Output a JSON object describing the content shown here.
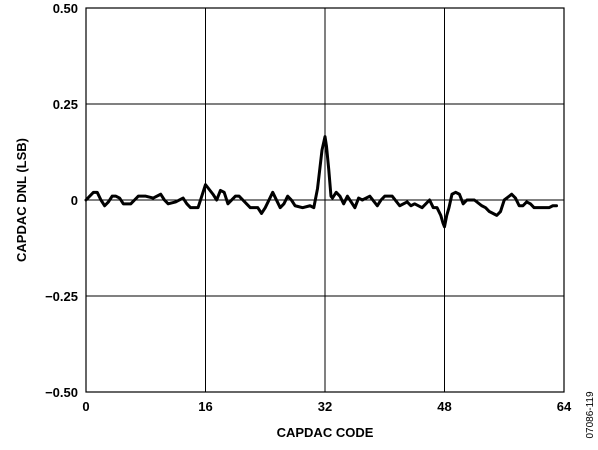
{
  "chart_data": {
    "type": "line",
    "xlabel": "CAPDAC CODE",
    "ylabel": "CAPDAC DNL (LSB)",
    "xlim": [
      0,
      64
    ],
    "ylim": [
      -0.5,
      0.5
    ],
    "x_ticks": [
      "0",
      "16",
      "32",
      "48",
      "64"
    ],
    "y_ticks": [
      "0.50",
      "0.25",
      "0",
      "−0.25",
      "−0.50"
    ],
    "grid": true,
    "figure_id": "07086-119",
    "series": [
      {
        "x": [
          0,
          1,
          1.5,
          2,
          2.5,
          3,
          3.5,
          4,
          4.5,
          5,
          6,
          6.5,
          7,
          8,
          9,
          10,
          10.5,
          11,
          12,
          13,
          13.5,
          14,
          15,
          15.5,
          16,
          17,
          17.5,
          18,
          18.5,
          19,
          20,
          20.5,
          21,
          22,
          22.5,
          23,
          23.5,
          24,
          25,
          26,
          26.5,
          27,
          27.5,
          28,
          29,
          30,
          30.5,
          31,
          31.3,
          31.6,
          32,
          32.2,
          32.5,
          32.8,
          33,
          33.5,
          34,
          34.5,
          35,
          35.5,
          36,
          36.5,
          37,
          38,
          39,
          39.5,
          40,
          41,
          42,
          43,
          43.5,
          44,
          45,
          46,
          46.5,
          47,
          47.5,
          47.8,
          48,
          48.3,
          48.6,
          49,
          49.5,
          50,
          50.5,
          51,
          52,
          53,
          53.5,
          54,
          55,
          55.5,
          56,
          57,
          57.5,
          58,
          58.5,
          59,
          59.5,
          60,
          61,
          62,
          62.5,
          63
        ],
        "y": [
          0.0,
          0.02,
          0.02,
          0.0,
          -0.015,
          -0.005,
          0.01,
          0.01,
          0.005,
          -0.01,
          -0.01,
          0.0,
          0.01,
          0.01,
          0.005,
          0.015,
          0.0,
          -0.01,
          -0.005,
          0.005,
          -0.01,
          -0.02,
          -0.02,
          0.01,
          0.04,
          0.015,
          0.0,
          0.025,
          0.02,
          -0.01,
          0.01,
          0.01,
          0.0,
          -0.02,
          -0.02,
          -0.02,
          -0.035,
          -0.02,
          0.02,
          -0.02,
          -0.01,
          0.01,
          0.0,
          -0.015,
          -0.02,
          -0.015,
          -0.02,
          0.03,
          0.08,
          0.13,
          0.165,
          0.14,
          0.08,
          0.01,
          0.005,
          0.02,
          0.01,
          -0.01,
          0.01,
          -0.005,
          -0.02,
          0.005,
          0.0,
          0.01,
          -0.015,
          0.0,
          0.01,
          0.01,
          -0.015,
          -0.005,
          -0.015,
          -0.01,
          -0.02,
          0.0,
          -0.02,
          -0.02,
          -0.04,
          -0.06,
          -0.07,
          -0.04,
          -0.02,
          0.015,
          0.02,
          0.015,
          -0.01,
          0.0,
          0.0,
          -0.015,
          -0.02,
          -0.03,
          -0.04,
          -0.03,
          0.0,
          0.015,
          0.005,
          -0.015,
          -0.015,
          -0.005,
          -0.01,
          -0.02,
          -0.02,
          -0.02,
          -0.015,
          -0.015
        ]
      }
    ]
  }
}
